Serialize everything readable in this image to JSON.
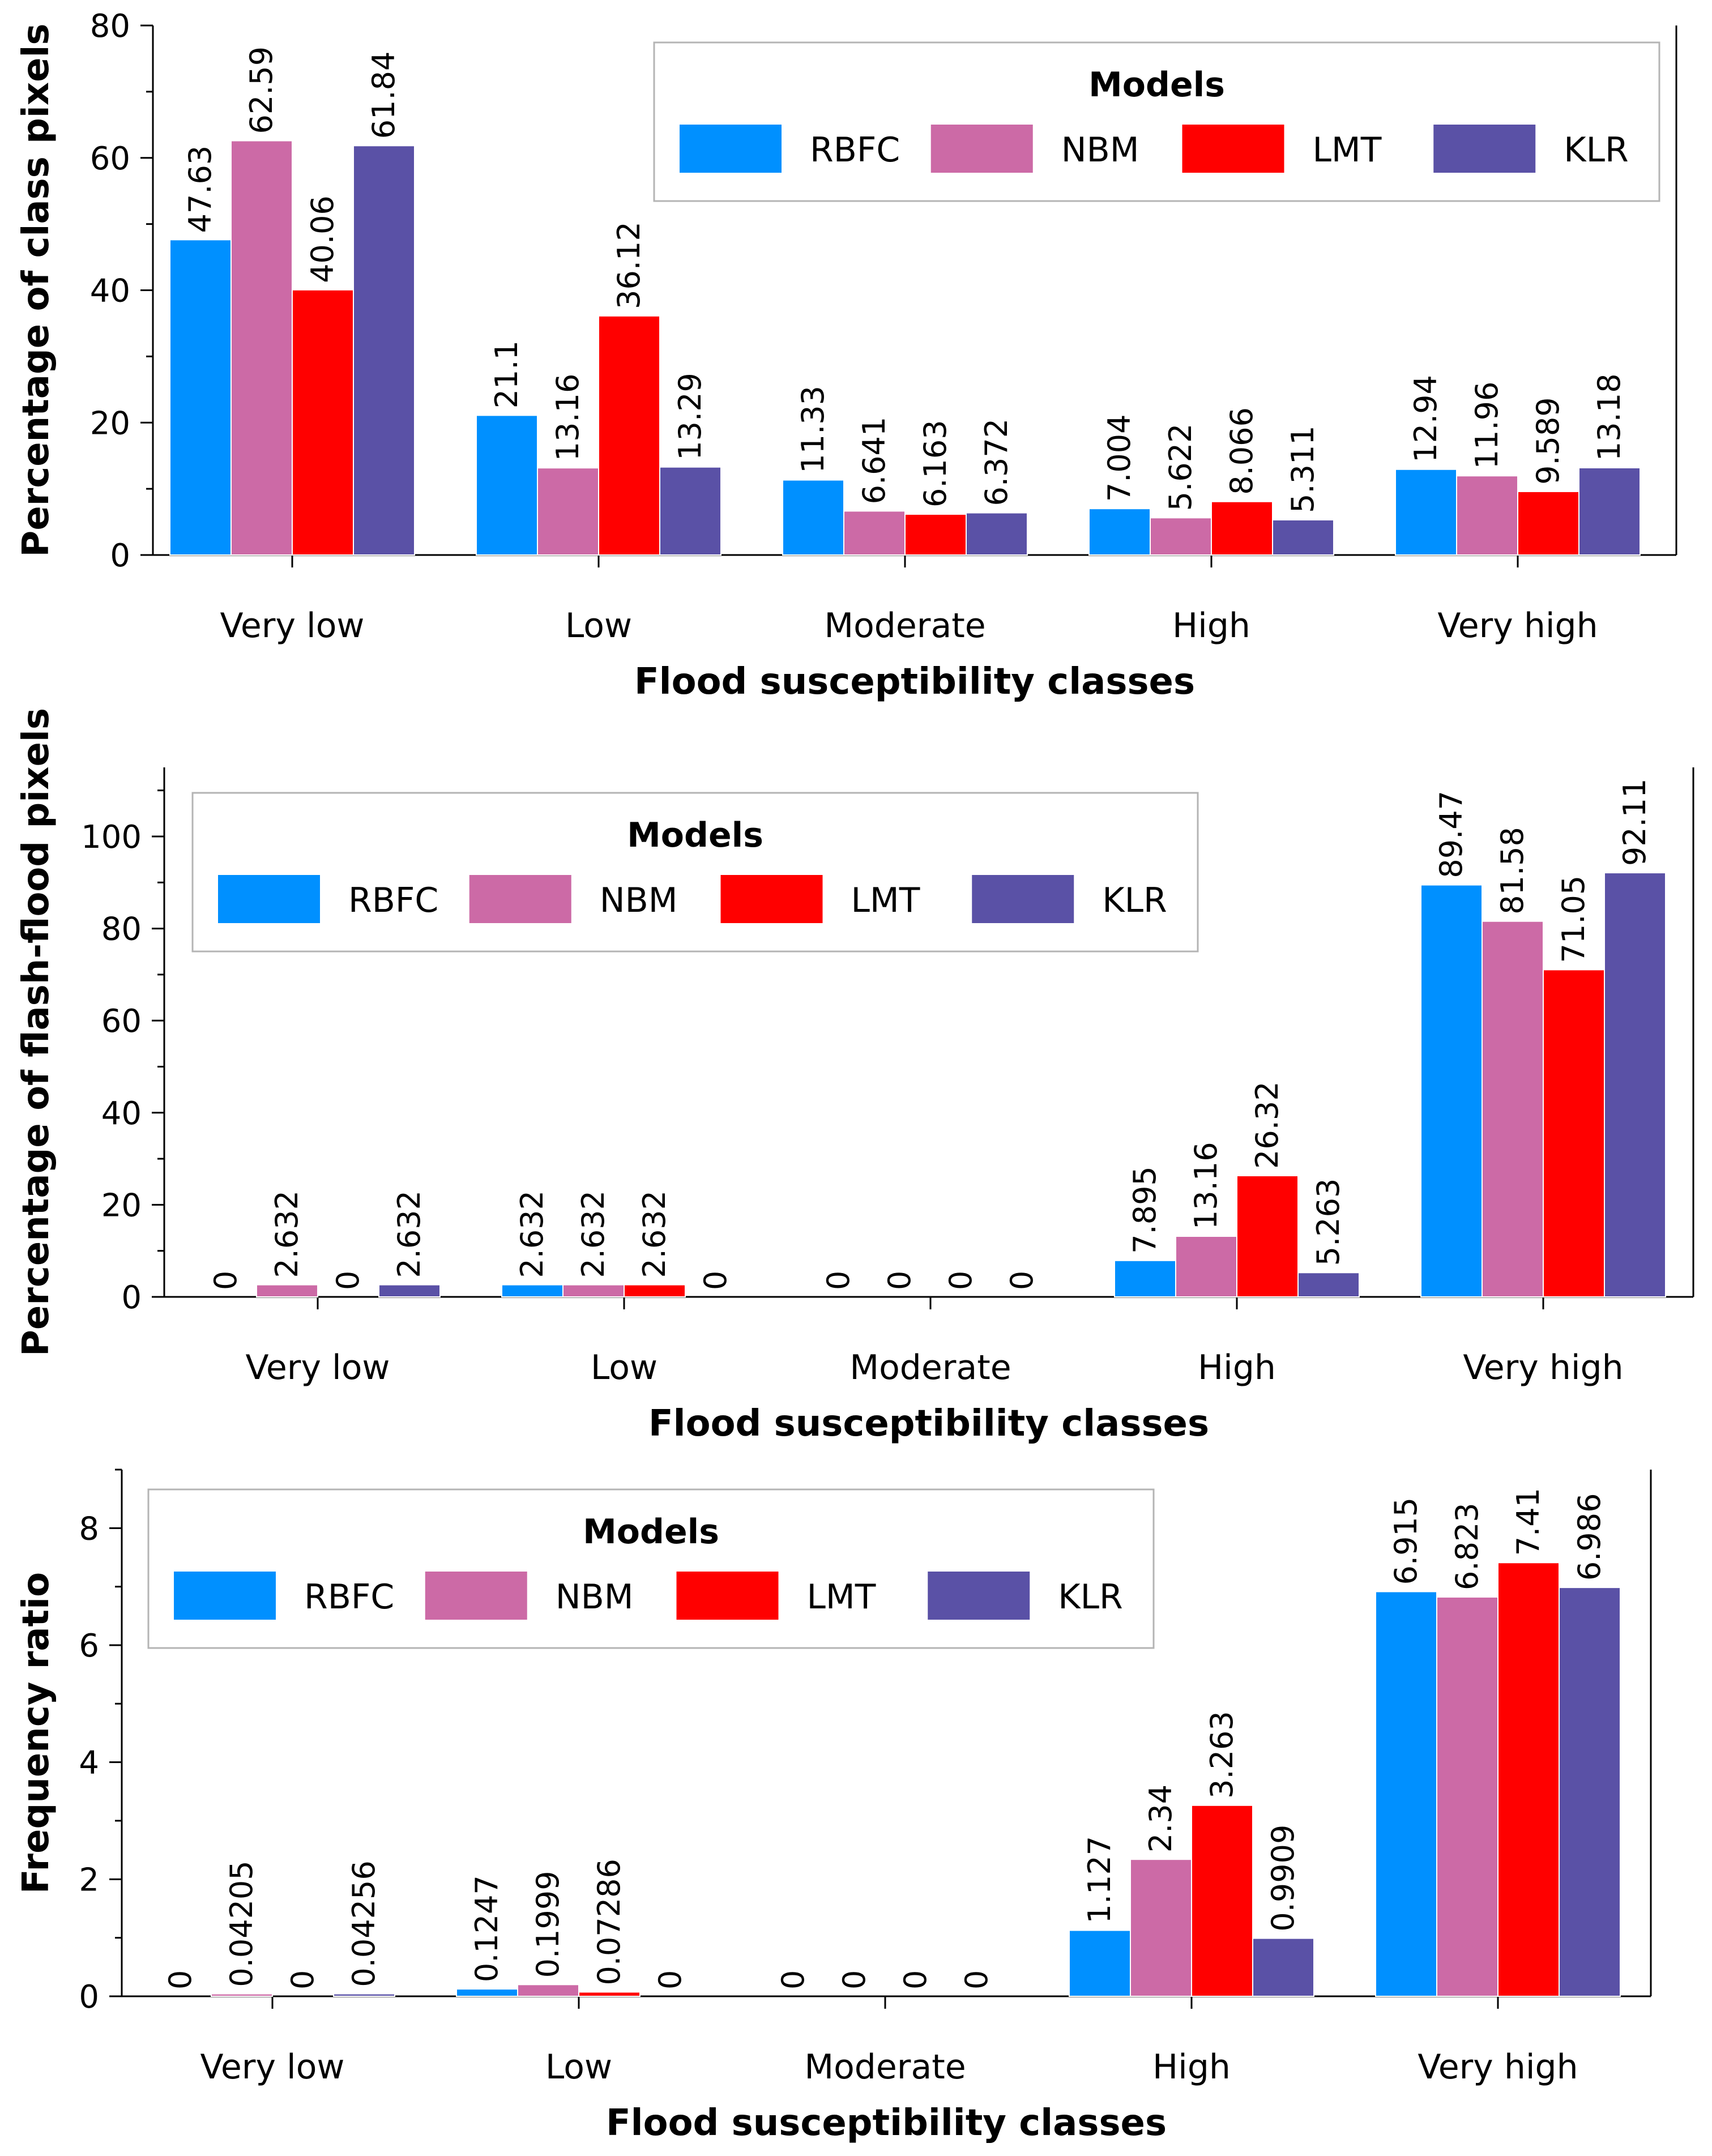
{
  "chart_data": [
    {
      "type": "bar",
      "title": "",
      "xlabel": "Flood susceptibility classes",
      "ylabel": "Percentage of class pixels",
      "ylim": [
        0,
        80
      ],
      "yticks": [
        0,
        20,
        40,
        60,
        80
      ],
      "categories": [
        "Very low",
        "Low",
        "Moderate",
        "High",
        "Very high"
      ],
      "legend_title": "Models",
      "legend_position": "top-right",
      "series": [
        {
          "name": "RBFC",
          "color": "#0090ff",
          "values": [
            47.63,
            21.1,
            11.33,
            7.004,
            12.94
          ],
          "labels": [
            "47.63",
            "21.1",
            "11.33",
            "7.004",
            "12.94"
          ]
        },
        {
          "name": "NBM",
          "color": "#cc6aa6",
          "values": [
            62.59,
            13.16,
            6.641,
            5.622,
            11.96
          ],
          "labels": [
            "62.59",
            "13.16",
            "6.641",
            "5.622",
            "11.96"
          ]
        },
        {
          "name": "LMT",
          "color": "#ff0000",
          "values": [
            40.06,
            36.12,
            6.163,
            8.066,
            9.589
          ],
          "labels": [
            "40.06",
            "36.12",
            "6.163",
            "8.066",
            "9.589"
          ]
        },
        {
          "name": "KLR",
          "color": "#5a51a6",
          "values": [
            61.84,
            13.29,
            6.372,
            5.311,
            13.18
          ],
          "labels": [
            "61.84",
            "13.29",
            "6.372",
            "5.311",
            "13.18"
          ]
        }
      ]
    },
    {
      "type": "bar",
      "title": "",
      "xlabel": "Flood susceptibility classes",
      "ylabel": "Percentage of flash-flood pixels",
      "ylim": [
        0,
        115
      ],
      "yticks": [
        0,
        20,
        40,
        60,
        80,
        100
      ],
      "categories": [
        "Very low",
        "Low",
        "Moderate",
        "High",
        "Very high"
      ],
      "legend_title": "Models",
      "legend_position": "top-left",
      "series": [
        {
          "name": "RBFC",
          "color": "#0090ff",
          "values": [
            0,
            2.632,
            0,
            7.895,
            89.47
          ],
          "labels": [
            "0",
            "2.632",
            "0",
            "7.895",
            "89.47"
          ]
        },
        {
          "name": "NBM",
          "color": "#cc6aa6",
          "values": [
            2.632,
            2.632,
            0,
            13.16,
            81.58
          ],
          "labels": [
            "2.632",
            "2.632",
            "0",
            "13.16",
            "81.58"
          ]
        },
        {
          "name": "LMT",
          "color": "#ff0000",
          "values": [
            0,
            2.632,
            0,
            26.32,
            71.05
          ],
          "labels": [
            "0",
            "2.632",
            "0",
            "26.32",
            "71.05"
          ]
        },
        {
          "name": "KLR",
          "color": "#5a51a6",
          "values": [
            2.632,
            0,
            0,
            5.263,
            92.11
          ],
          "labels": [
            "2.632",
            "0",
            "0",
            "5.263",
            "92.11"
          ]
        }
      ]
    },
    {
      "type": "bar",
      "title": "",
      "xlabel": "Flood susceptibility classes",
      "ylabel": "Frequency ratio",
      "ylim": [
        0,
        9
      ],
      "yticks": [
        0,
        2,
        4,
        6,
        8
      ],
      "categories": [
        "Very low",
        "Low",
        "Moderate",
        "High",
        "Very high"
      ],
      "legend_title": "Models",
      "legend_position": "top-left",
      "series": [
        {
          "name": "RBFC",
          "color": "#0090ff",
          "values": [
            0,
            0.1247,
            0,
            1.127,
            6.915
          ],
          "labels": [
            "0",
            "0.1247",
            "0",
            "1.127",
            "6.915"
          ]
        },
        {
          "name": "NBM",
          "color": "#cc6aa6",
          "values": [
            0.04205,
            0.1999,
            0,
            2.34,
            6.823
          ],
          "labels": [
            "0.04205",
            "0.1999",
            "0",
            "2.34",
            "6.823"
          ]
        },
        {
          "name": "LMT",
          "color": "#ff0000",
          "values": [
            0,
            0.07286,
            0,
            3.263,
            7.41
          ],
          "labels": [
            "0",
            "0.07286",
            "0",
            "3.263",
            "7.41"
          ]
        },
        {
          "name": "KLR",
          "color": "#5a51a6",
          "values": [
            0.04256,
            0,
            0,
            0.9909,
            6.986
          ],
          "labels": [
            "0.04256",
            "0",
            "0",
            "0.9909",
            "6.986"
          ]
        }
      ]
    }
  ]
}
